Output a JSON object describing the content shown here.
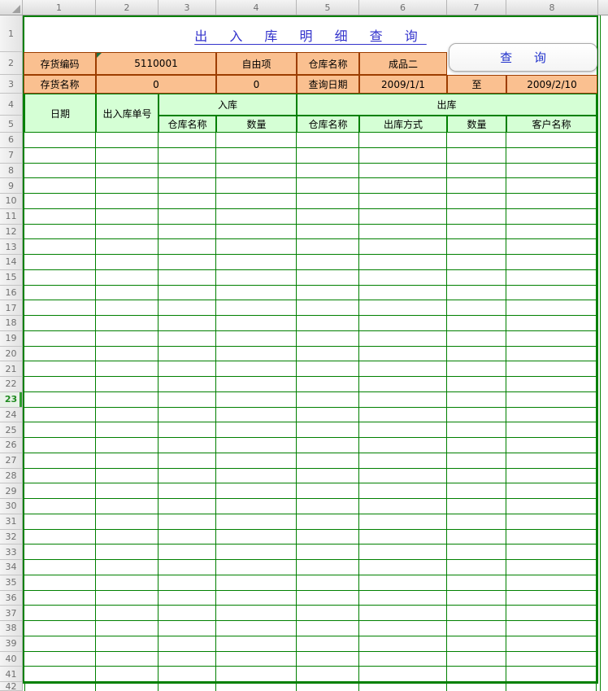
{
  "colors": {
    "grid_green": "#008000",
    "header_fill_green": "#D5FFD5",
    "form_fill_orange": "#FAC090",
    "form_border_brown": "#9C3D00",
    "title_blue": "#3333CC",
    "button_text_blue": "#2233CC",
    "active_row_green": "#2E9E2E",
    "flag_triangle_green": "#1E7145"
  },
  "sheet": {
    "col_headers": [
      "1",
      "2",
      "3",
      "4",
      "5",
      "6",
      "7",
      "8"
    ],
    "row_headers": [
      "1",
      "2",
      "3",
      "4",
      "5",
      "6",
      "7",
      "8",
      "9",
      "10",
      "11",
      "12",
      "13",
      "14",
      "15",
      "16",
      "17",
      "18",
      "19",
      "20",
      "21",
      "22",
      "23",
      "24",
      "25",
      "26",
      "27",
      "28",
      "29",
      "30",
      "31",
      "32",
      "33",
      "34",
      "35",
      "36",
      "37",
      "38",
      "39",
      "40",
      "41",
      "42"
    ],
    "active_row": "23",
    "empty_body_rows": 36
  },
  "title": {
    "text": "出 入 库 明 细 查 询"
  },
  "query_form": {
    "row2": {
      "c1": {
        "label": "存货编码"
      },
      "c2": {
        "value": "5110001"
      },
      "c3": {
        "label": "自由项"
      },
      "c4": {
        "label": "仓库名称"
      },
      "c5": {
        "value": "成品二"
      }
    },
    "row3": {
      "c1": {
        "label": "存货名称"
      },
      "c2": {
        "value": "0"
      },
      "c3": {
        "value": "0"
      },
      "c4": {
        "label": "查询日期"
      },
      "c5": {
        "value": "2009/1/1"
      },
      "c6": {
        "label": "至"
      },
      "c7": {
        "value": "2009/2/10"
      }
    },
    "button_label": "查 询"
  },
  "detail_table": {
    "headers": {
      "date": "日期",
      "doc_no": "出入库单号",
      "inbound_group": "入库",
      "outbound_group": "出库",
      "in_warehouse": "仓库名称",
      "in_qty": "数量",
      "out_warehouse": "仓库名称",
      "out_method": "出库方式",
      "out_qty": "数量",
      "customer": "客户名称"
    }
  }
}
